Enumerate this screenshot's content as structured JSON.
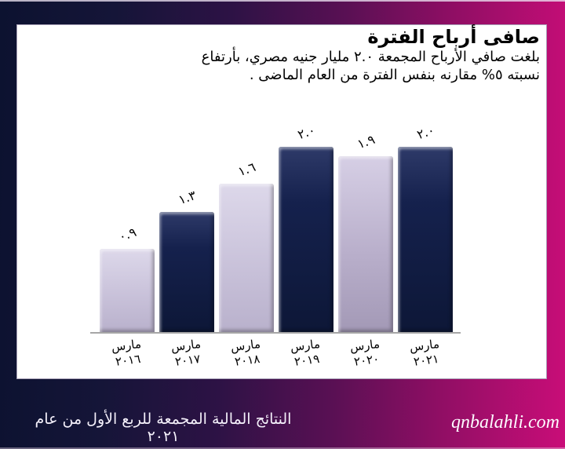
{
  "slide": {
    "title": "صافى أرباح الفترة",
    "body": {
      "line1": "بلغت صافي الأرباح المجمعة ٢.٠ مليار جنيه مصري، بأرتفاع",
      "line2": "نسبته ٥%  مقارنه بنفس الفترة من العام الماضى ."
    },
    "footer": {
      "report_title": "النتائج المالية المجمعة للربع الأول من عام ٢٠٢١",
      "website": "qnbalahli.com"
    }
  },
  "colors": {
    "gradient_left": "#0c1230",
    "gradient_right": "#c90d78",
    "bar_dark": "#15214d",
    "bar_light": "#c9c2da",
    "bar_light_muted": "#b9afcb",
    "axis_line": "#a6a6a6",
    "text": "#000000",
    "footer_text": "#ffffff"
  },
  "chart_data": {
    "type": "bar",
    "title": "صافى أرباح الفترة",
    "categories": [
      "مارس ٢٠١٦",
      "مارس ٢٠١٧",
      "مارس ٢٠١٨",
      "مارس ٢٠١٩",
      "مارس ٢٠٢٠",
      "مارس ٢٠٢١"
    ],
    "category_lines": [
      [
        "مارس",
        "٢٠١٦"
      ],
      [
        "مارس",
        "٢٠١٧"
      ],
      [
        "مارس",
        "٢٠١٨"
      ],
      [
        "مارس",
        "٢٠١٩"
      ],
      [
        "مارس",
        "٢٠٢٠"
      ],
      [
        "مارس",
        "٢٠٢١"
      ]
    ],
    "values": [
      0.9,
      1.3,
      1.6,
      2.0,
      1.9,
      2.0
    ],
    "value_labels": [
      "٠.٩",
      "١.٣",
      "١.٦",
      "٢.٠",
      "١.٩",
      "٢.٠"
    ],
    "bar_styles": [
      "light",
      "dark",
      "light",
      "dark",
      "light-muted",
      "dark"
    ],
    "ylim": [
      0,
      2.2
    ],
    "grid": false,
    "legend": false,
    "xlabel": "",
    "ylabel": ""
  }
}
